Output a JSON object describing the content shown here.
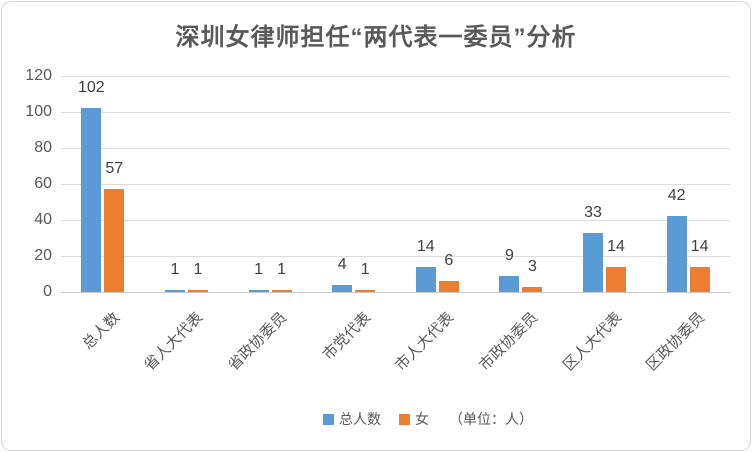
{
  "chart_data": {
    "type": "bar",
    "title": "深圳女律师担任“两代表一委员”分析",
    "unit_note": "（单位：人）",
    "categories": [
      "总人数",
      "省人大代表",
      "省政协委员",
      "市党代表",
      "市人大代表",
      "市政协委员",
      "区人大代表",
      "区政协委员"
    ],
    "series": [
      {
        "name": "总人数",
        "color": "#5B9BD5",
        "values": [
          102,
          1,
          1,
          4,
          14,
          9,
          33,
          42
        ]
      },
      {
        "name": "女",
        "color": "#ED7D31",
        "values": [
          57,
          1,
          1,
          1,
          6,
          3,
          14,
          14
        ]
      }
    ],
    "y_ticks": [
      0,
      20,
      40,
      60,
      80,
      100,
      120
    ],
    "ylim": [
      0,
      120
    ],
    "xlabel": "",
    "ylabel": "",
    "grid": true,
    "legend_position": "bottom",
    "colors": {
      "grid": "#dcdcdc",
      "axis_text": "#595959",
      "data_label": "#404040",
      "title": "#595959"
    }
  }
}
